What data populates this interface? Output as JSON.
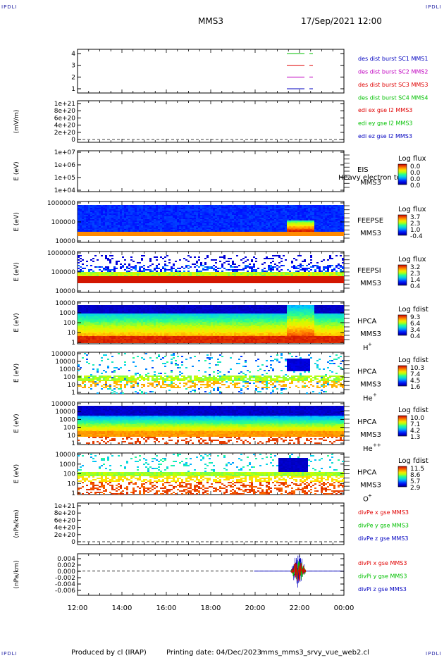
{
  "corner_label": "IPDLI",
  "header": {
    "spacecraft": "MMS3",
    "datetime": "17/Sep/2021 12:00"
  },
  "footer": {
    "produced_by": "Produced by cl (IRAP)",
    "printing_date": "Printing date: 04/Dec/2023",
    "filename": "mms_mms3_srvy_vue_web2.cl"
  },
  "chart_data": {
    "type": "stacked-timeseries",
    "x_ticks": [
      "12:00",
      "14:00",
      "16:00",
      "18:00",
      "20:00",
      "22:00",
      "00:00"
    ],
    "x_range_hours": [
      12,
      24
    ],
    "panels": [
      {
        "id": "p1",
        "ylabel": "",
        "yticks": [
          "4",
          "3",
          "2",
          "1"
        ],
        "legend": [
          {
            "text": "des dist burst SC1 MMS1",
            "color": "#0000c0"
          },
          {
            "text": "des dist burst SC2 MMS2",
            "color": "#c000c0"
          },
          {
            "text": "des dist burst SC3 MMS3",
            "color": "#e00000"
          },
          {
            "text": "des dist burst SC4 MMS4",
            "color": "#00c000"
          }
        ],
        "lines": [
          {
            "level": 4,
            "color": "#00c000"
          },
          {
            "level": 3,
            "color": "#e00000"
          },
          {
            "level": 2,
            "color": "#c000c0"
          },
          {
            "level": 1,
            "color": "#0000c0"
          }
        ]
      },
      {
        "id": "p2",
        "ylabel": "(mV/m)",
        "yticks": [
          "1e+21",
          "8e+20",
          "6e+20",
          "4e+20",
          "2e+20",
          "0"
        ],
        "legend": [
          {
            "text": "edi ex gse l2 MMS3",
            "color": "#e00000"
          },
          {
            "text": "edi ey gse l2 MMS3",
            "color": "#00c000"
          },
          {
            "text": "edi ez gse l2 MMS3",
            "color": "#0000c0"
          }
        ]
      },
      {
        "id": "p3",
        "ylabel": "E (eV)",
        "yticks": [
          "1e+07",
          "1e+06",
          "1e+05",
          "1e+04"
        ],
        "instrument": [
          "EIS",
          "MMS3"
        ],
        "overlay_text": "Heavy electron to",
        "cbar": {
          "title": "Log flux",
          "ticks": [
            "0.0",
            "0.0",
            "0.0",
            "0.0"
          ]
        }
      },
      {
        "id": "p4",
        "ylabel": "E (eV)",
        "yticks": [
          "1000000",
          "100000",
          "10000"
        ],
        "instrument": [
          "FEEPSE",
          "MMS3"
        ],
        "cbar": {
          "title": "Log flux",
          "ticks": [
            "3.7",
            "2.3",
            "1.0",
            "-0.4"
          ]
        }
      },
      {
        "id": "p5",
        "ylabel": "E (eV)",
        "yticks": [
          "1000000",
          "100000",
          "10000"
        ],
        "instrument": [
          "FEEPSI",
          "MMS3"
        ],
        "cbar": {
          "title": "Log flux",
          "ticks": [
            "3.2",
            "2.3",
            "1.4",
            "0.4"
          ]
        }
      },
      {
        "id": "p6",
        "ylabel": "E (eV)",
        "yticks": [
          "10000",
          "1000",
          "100",
          "10",
          "1"
        ],
        "instrument": [
          "HPCA",
          "MMS3"
        ],
        "species": "H",
        "charge": "+",
        "cbar": {
          "title": "Log fdist",
          "ticks": [
            "9.3",
            "6.4",
            "3.4",
            "0.4"
          ]
        }
      },
      {
        "id": "p7",
        "ylabel": "E (eV)",
        "yticks": [
          "100000",
          "10000",
          "1000",
          "100",
          "10",
          "1"
        ],
        "instrument": [
          "HPCA",
          "MMS3"
        ],
        "species": "He",
        "charge": "+",
        "cbar": {
          "title": "Log fdist",
          "ticks": [
            "10.3",
            "7.4",
            "4.5",
            "1.6"
          ]
        }
      },
      {
        "id": "p8",
        "ylabel": "E (eV)",
        "yticks": [
          "100000",
          "10000",
          "1000",
          "100",
          "10",
          "1"
        ],
        "instrument": [
          "HPCA",
          "MMS3"
        ],
        "species": "He",
        "charge": "++",
        "cbar": {
          "title": "Log fdist",
          "ticks": [
            "10.0",
            "7.1",
            "4.2",
            "1.3"
          ]
        }
      },
      {
        "id": "p9",
        "ylabel": "E (eV)",
        "yticks": [
          "10000",
          "1000",
          "100",
          "10",
          "1"
        ],
        "instrument": [
          "HPCA",
          "MMS3"
        ],
        "species": "O",
        "charge": "+",
        "cbar": {
          "title": "Log fdist",
          "ticks": [
            "11.5",
            "8.6",
            "5.7",
            "2.9"
          ]
        }
      },
      {
        "id": "p10",
        "ylabel": "(nPa/km)",
        "yticks": [
          "1e+21",
          "8e+20",
          "6e+20",
          "4e+20",
          "2e+20",
          "0"
        ],
        "legend": [
          {
            "text": "divPe x gse MMS3",
            "color": "#e00000"
          },
          {
            "text": "divPe y gse MMS3",
            "color": "#00c000"
          },
          {
            "text": "divPe z gse MMS3",
            "color": "#0000c0"
          }
        ]
      },
      {
        "id": "p11",
        "ylabel": "(nPa/km)",
        "yticks": [
          "0.004",
          "0.002",
          "0.000",
          "-0.002",
          "-0.004",
          "-0.006"
        ],
        "ylim": [
          -0.007,
          0.005
        ],
        "data_start_hour": 19.95,
        "burst_hours": [
          21.6,
          22.3
        ],
        "legend": [
          {
            "text": "divPi x gse MMS3",
            "color": "#e00000"
          },
          {
            "text": "divPi y gse MMS3",
            "color": "#00c000"
          },
          {
            "text": "divPi z gse MMS3",
            "color": "#0000c0"
          }
        ]
      }
    ]
  }
}
